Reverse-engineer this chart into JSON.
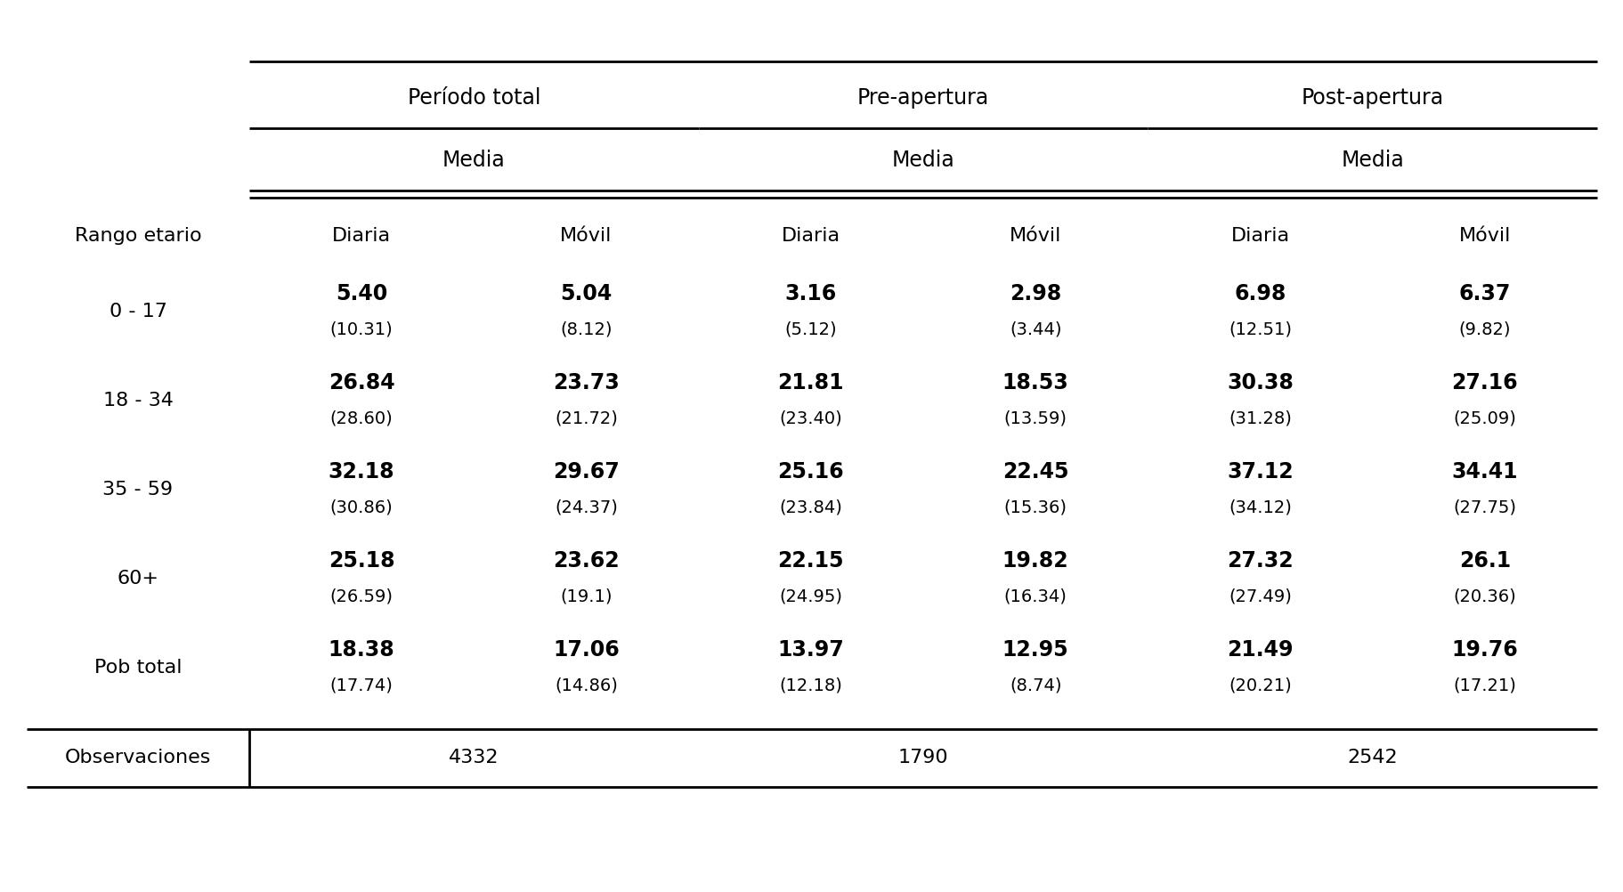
{
  "group_headers": [
    "Período total",
    "Pre-apertura",
    "Post-apertura"
  ],
  "media_header": "Media",
  "col_subheaders": [
    "Diaria",
    "Móvil",
    "Diaria",
    "Móvil",
    "Diaria",
    "Móvil"
  ],
  "row_label_header": "Rango etario",
  "rows": [
    {
      "label": "0 - 17",
      "mean": [
        "5.40",
        "5.04",
        "3.16",
        "2.98",
        "6.98",
        "6.37"
      ],
      "sd": [
        "(10.31)",
        "(8.12)",
        "(5.12)",
        "(3.44)",
        "(12.51)",
        "(9.82)"
      ]
    },
    {
      "label": "18 - 34",
      "mean": [
        "26.84",
        "23.73",
        "21.81",
        "18.53",
        "30.38",
        "27.16"
      ],
      "sd": [
        "(28.60)",
        "(21.72)",
        "(23.40)",
        "(13.59)",
        "(31.28)",
        "(25.09)"
      ]
    },
    {
      "label": "35 - 59",
      "mean": [
        "32.18",
        "29.67",
        "25.16",
        "22.45",
        "37.12",
        "34.41"
      ],
      "sd": [
        "(30.86)",
        "(24.37)",
        "(23.84)",
        "(15.36)",
        "(34.12)",
        "(27.75)"
      ]
    },
    {
      "label": "60+",
      "mean": [
        "25.18",
        "23.62",
        "22.15",
        "19.82",
        "27.32",
        "26.1"
      ],
      "sd": [
        "(26.59)",
        "(19.1)",
        "(24.95)",
        "(16.34)",
        "(27.49)",
        "(20.36)"
      ]
    },
    {
      "label": "Pob total",
      "mean": [
        "18.38",
        "17.06",
        "13.97",
        "12.95",
        "21.49",
        "19.76"
      ],
      "sd": [
        "(17.74)",
        "(14.86)",
        "(12.18)",
        "(8.74)",
        "(20.21)",
        "(17.21)"
      ]
    }
  ],
  "obs_label": "Observaciones",
  "obs_values": [
    "4332",
    "1790",
    "2542"
  ],
  "bg_color": "#ffffff",
  "text_color": "#000000",
  "fs_group": 17,
  "fs_media": 17,
  "fs_subhdr": 16,
  "fs_label": 16,
  "fs_mean": 17,
  "fs_sd": 14,
  "fs_obs": 16,
  "line_width": 2.0
}
